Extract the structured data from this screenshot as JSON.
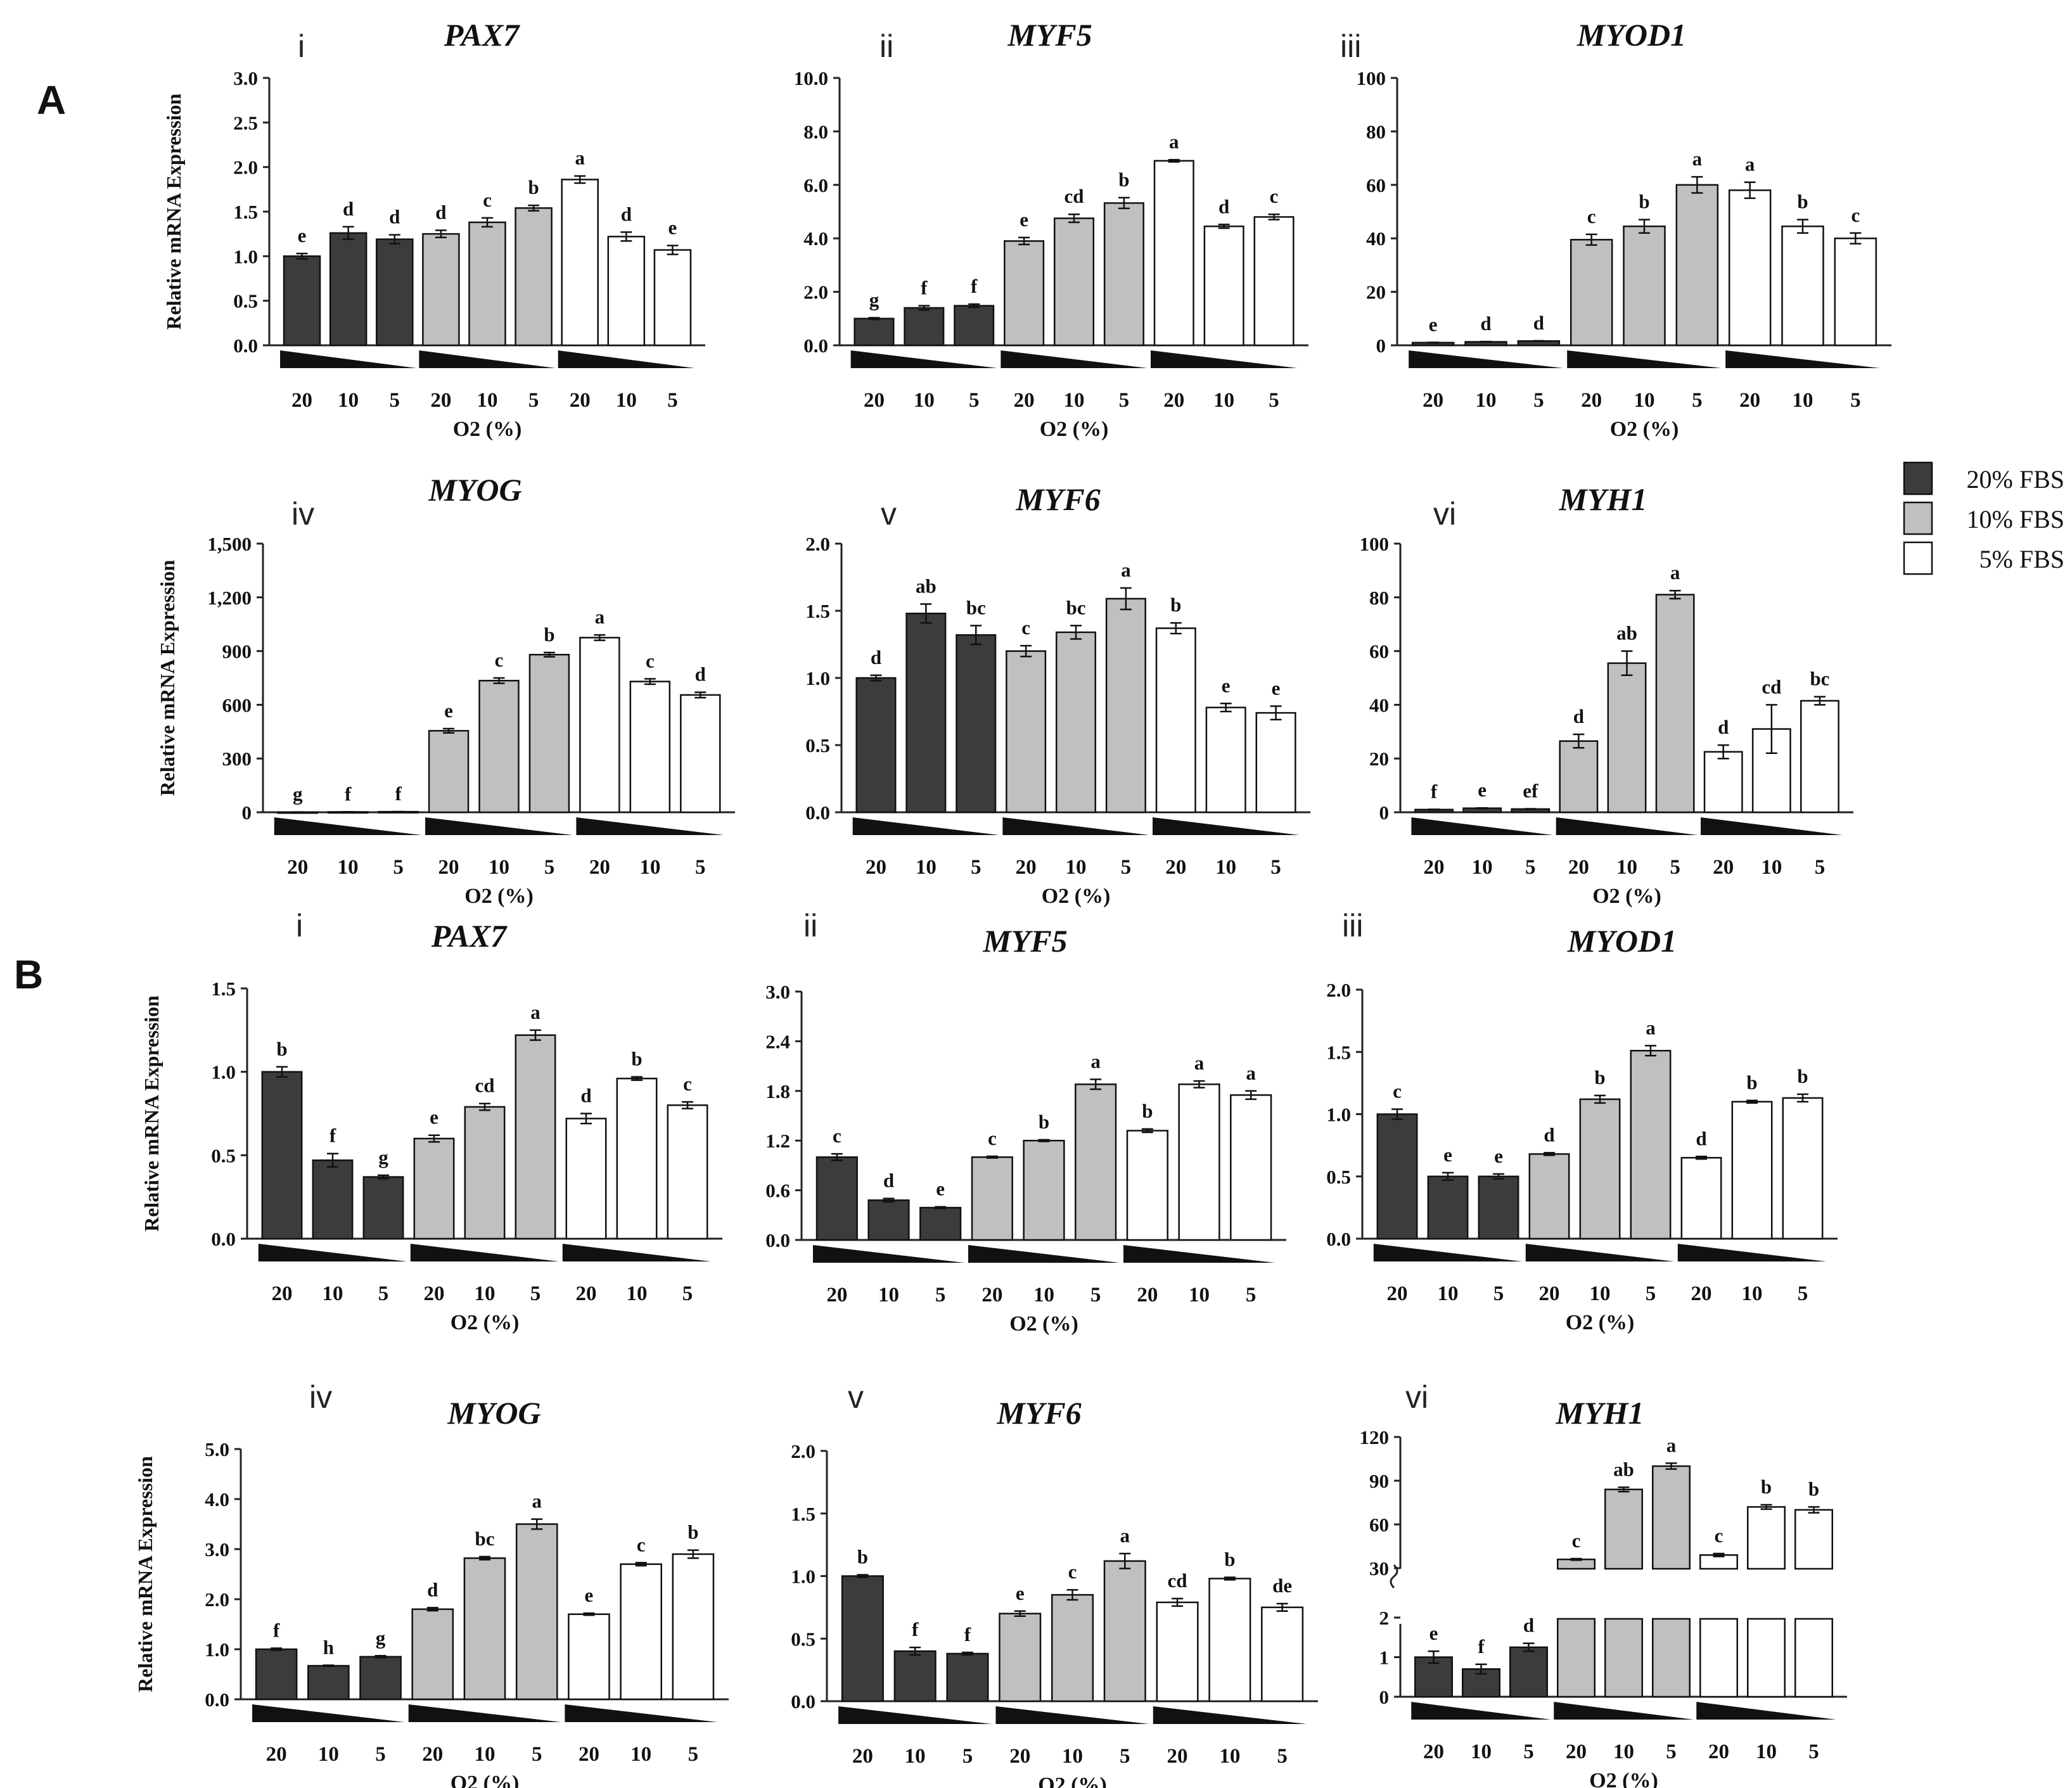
{
  "figure": {
    "legend": [
      {
        "label": "20% FBS",
        "color": "#3c3c3c"
      },
      {
        "label": "10% FBS",
        "color": "#c0c0c0"
      },
      {
        "label": "5% FBS",
        "color": "#ffffff"
      }
    ],
    "colors": {
      "fbs20": "#3c3c3c",
      "fbs10": "#c0c0c0",
      "fbs5": "#ffffff",
      "axis": "#222222"
    }
  },
  "chart_data": [
    {
      "panel": "A",
      "roman": "i",
      "type": "bar",
      "title": "PAX7",
      "ylabel": "Relative mRNA Expression",
      "xlabel": "O2 (%)",
      "categories": [
        "20",
        "10",
        "5",
        "20",
        "10",
        "5",
        "20",
        "10",
        "5"
      ],
      "groups": [
        "20% FBS",
        "20% FBS",
        "20% FBS",
        "10% FBS",
        "10% FBS",
        "10% FBS",
        "5% FBS",
        "5% FBS",
        "5% FBS"
      ],
      "values": [
        1.0,
        1.26,
        1.19,
        1.25,
        1.38,
        1.54,
        1.86,
        1.22,
        1.07
      ],
      "errors": [
        0.03,
        0.07,
        0.05,
        0.04,
        0.05,
        0.03,
        0.04,
        0.05,
        0.05
      ],
      "sig": [
        "e",
        "d",
        "d",
        "d",
        "c",
        "b",
        "a",
        "d",
        "e"
      ],
      "ylim": [
        0,
        3.0
      ],
      "yticks": [
        "0.0",
        "0.5",
        "1.0",
        "1.5",
        "2.0",
        "2.5",
        "3.0"
      ]
    },
    {
      "panel": "A",
      "roman": "ii",
      "type": "bar",
      "title": "MYF5",
      "ylabel": "",
      "xlabel": "O2 (%)",
      "categories": [
        "20",
        "10",
        "5",
        "20",
        "10",
        "5",
        "20",
        "10",
        "5"
      ],
      "groups": [
        "20% FBS",
        "20% FBS",
        "20% FBS",
        "10% FBS",
        "10% FBS",
        "10% FBS",
        "5% FBS",
        "5% FBS",
        "5% FBS"
      ],
      "values": [
        1.0,
        1.4,
        1.48,
        3.9,
        4.75,
        5.32,
        6.9,
        4.45,
        4.8
      ],
      "errors": [
        0.03,
        0.08,
        0.06,
        0.13,
        0.15,
        0.2,
        0.04,
        0.07,
        0.1
      ],
      "sig": [
        "g",
        "f",
        "f",
        "e",
        "cd",
        "b",
        "a",
        "d",
        "c"
      ],
      "ylim": [
        0,
        10.0
      ],
      "yticks": [
        "0.0",
        "2.0",
        "4.0",
        "6.0",
        "8.0",
        "10.0"
      ]
    },
    {
      "panel": "A",
      "roman": "iii",
      "type": "bar",
      "title": "MYOD1",
      "ylabel": "",
      "xlabel": "O2 (%)",
      "categories": [
        "20",
        "10",
        "5",
        "20",
        "10",
        "5",
        "20",
        "10",
        "5"
      ],
      "groups": [
        "20% FBS",
        "20% FBS",
        "20% FBS",
        "10% FBS",
        "10% FBS",
        "10% FBS",
        "5% FBS",
        "5% FBS",
        "5% FBS"
      ],
      "values": [
        1.0,
        1.3,
        1.6,
        39.5,
        44.5,
        60.0,
        58.0,
        44.5,
        40.0
      ],
      "errors": [
        0.1,
        0.1,
        0.1,
        2.0,
        2.5,
        3.0,
        3.0,
        2.5,
        2.0
      ],
      "sig": [
        "e",
        "d",
        "d",
        "c",
        "b",
        "a",
        "a",
        "b",
        "c"
      ],
      "ylim": [
        0,
        100
      ],
      "yticks": [
        "0",
        "20",
        "40",
        "60",
        "80",
        "100"
      ]
    },
    {
      "panel": "A",
      "roman": "iv",
      "type": "bar",
      "title": "MYOG",
      "ylabel": "Relative mRNA Expression",
      "xlabel": "O2 (%)",
      "categories": [
        "20",
        "10",
        "5",
        "20",
        "10",
        "5",
        "20",
        "10",
        "5"
      ],
      "groups": [
        "20% FBS",
        "20% FBS",
        "20% FBS",
        "10% FBS",
        "10% FBS",
        "10% FBS",
        "5% FBS",
        "5% FBS",
        "5% FBS"
      ],
      "values": [
        1,
        2,
        3,
        455,
        735,
        880,
        975,
        730,
        655
      ],
      "errors": [
        0.5,
        0.5,
        0.5,
        12,
        15,
        12,
        15,
        15,
        15
      ],
      "sig": [
        "g",
        "f",
        "f",
        "e",
        "c",
        "b",
        "a",
        "c",
        "d"
      ],
      "ylim": [
        0,
        1500
      ],
      "yticks": [
        "0",
        "300",
        "600",
        "900",
        "1,200",
        "1,500"
      ]
    },
    {
      "panel": "A",
      "roman": "v",
      "type": "bar",
      "title": "MYF6",
      "ylabel": "",
      "xlabel": "O2 (%)",
      "categories": [
        "20",
        "10",
        "5",
        "20",
        "10",
        "5",
        "20",
        "10",
        "5"
      ],
      "groups": [
        "20% FBS",
        "20% FBS",
        "20% FBS",
        "10% FBS",
        "10% FBS",
        "10% FBS",
        "5% FBS",
        "5% FBS",
        "5% FBS"
      ],
      "values": [
        1.0,
        1.48,
        1.32,
        1.2,
        1.34,
        1.59,
        1.37,
        0.78,
        0.74
      ],
      "errors": [
        0.02,
        0.07,
        0.07,
        0.04,
        0.05,
        0.08,
        0.04,
        0.03,
        0.05
      ],
      "sig": [
        "d",
        "ab",
        "bc",
        "c",
        "bc",
        "a",
        "b",
        "e",
        "e"
      ],
      "ylim": [
        0,
        2.0
      ],
      "yticks": [
        "0.0",
        "0.5",
        "1.0",
        "1.5",
        "2.0"
      ]
    },
    {
      "panel": "A",
      "roman": "vi",
      "type": "bar",
      "title": "MYH1",
      "ylabel": "",
      "xlabel": "O2 (%)",
      "categories": [
        "20",
        "10",
        "5",
        "20",
        "10",
        "5",
        "20",
        "10",
        "5"
      ],
      "groups": [
        "20% FBS",
        "20% FBS",
        "20% FBS",
        "10% FBS",
        "10% FBS",
        "10% FBS",
        "5% FBS",
        "5% FBS",
        "5% FBS"
      ],
      "values": [
        1.0,
        1.5,
        1.2,
        26.5,
        55.5,
        81.0,
        22.5,
        31.0,
        41.5
      ],
      "errors": [
        0.1,
        0.1,
        0.1,
        2.5,
        4.5,
        1.5,
        2.5,
        9.0,
        1.5
      ],
      "sig": [
        "f",
        "e",
        "ef",
        "d",
        "ab",
        "a",
        "d",
        "cd",
        "bc"
      ],
      "ylim": [
        0,
        100
      ],
      "yticks": [
        "0",
        "20",
        "40",
        "60",
        "80",
        "100"
      ]
    },
    {
      "panel": "B",
      "roman": "i",
      "type": "bar",
      "title": "PAX7",
      "ylabel": "Relative mRNA Expression",
      "xlabel": "O2 (%)",
      "categories": [
        "20",
        "10",
        "5",
        "20",
        "10",
        "5",
        "20",
        "10",
        "5"
      ],
      "groups": [
        "20% FBS",
        "20% FBS",
        "20% FBS",
        "10% FBS",
        "10% FBS",
        "10% FBS",
        "5% FBS",
        "5% FBS",
        "5% FBS"
      ],
      "values": [
        1.0,
        0.47,
        0.37,
        0.6,
        0.79,
        1.22,
        0.72,
        0.96,
        0.8
      ],
      "errors": [
        0.03,
        0.04,
        0.01,
        0.02,
        0.02,
        0.03,
        0.03,
        0.01,
        0.02
      ],
      "sig": [
        "b",
        "f",
        "g",
        "e",
        "cd",
        "a",
        "d",
        "b",
        "c"
      ],
      "ylim": [
        0,
        1.5
      ],
      "yticks": [
        "0.0",
        "0.5",
        "1.0",
        "1.5"
      ]
    },
    {
      "panel": "B",
      "roman": "ii",
      "type": "bar",
      "title": "MYF5",
      "ylabel": "",
      "xlabel": "O2 (%)",
      "categories": [
        "20",
        "10",
        "5",
        "20",
        "10",
        "5",
        "20",
        "10",
        "5"
      ],
      "groups": [
        "20% FBS",
        "20% FBS",
        "20% FBS",
        "10% FBS",
        "10% FBS",
        "10% FBS",
        "5% FBS",
        "5% FBS",
        "5% FBS"
      ],
      "values": [
        1.0,
        0.48,
        0.39,
        1.0,
        1.2,
        1.88,
        1.32,
        1.88,
        1.75
      ],
      "errors": [
        0.04,
        0.02,
        0.01,
        0.01,
        0.01,
        0.06,
        0.02,
        0.04,
        0.05
      ],
      "sig": [
        "c",
        "d",
        "e",
        "c",
        "b",
        "a",
        "b",
        "a",
        "a"
      ],
      "ylim": [
        0,
        3.0
      ],
      "yticks": [
        "0.0",
        "0.6",
        "1.2",
        "1.8",
        "2.4",
        "3.0"
      ]
    },
    {
      "panel": "B",
      "roman": "iii",
      "type": "bar",
      "title": "MYOD1",
      "ylabel": "",
      "xlabel": "O2 (%)",
      "categories": [
        "20",
        "10",
        "5",
        "20",
        "10",
        "5",
        "20",
        "10",
        "5"
      ],
      "groups": [
        "20% FBS",
        "20% FBS",
        "20% FBS",
        "10% FBS",
        "10% FBS",
        "10% FBS",
        "5% FBS",
        "5% FBS",
        "5% FBS"
      ],
      "values": [
        1.0,
        0.5,
        0.5,
        0.68,
        1.12,
        1.51,
        0.65,
        1.1,
        1.13
      ],
      "errors": [
        0.04,
        0.03,
        0.02,
        0.01,
        0.03,
        0.04,
        0.01,
        0.01,
        0.03
      ],
      "sig": [
        "c",
        "e",
        "e",
        "d",
        "b",
        "a",
        "d",
        "b",
        "b"
      ],
      "ylim": [
        0,
        2.0
      ],
      "yticks": [
        "0.0",
        "0.5",
        "1.0",
        "1.5",
        "2.0"
      ]
    },
    {
      "panel": "B",
      "roman": "iv",
      "type": "bar",
      "title": "MYOG",
      "ylabel": "Relative mRNA Expression",
      "xlabel": "O2 (%)",
      "categories": [
        "20",
        "10",
        "5",
        "20",
        "10",
        "5",
        "20",
        "10",
        "5"
      ],
      "groups": [
        "20% FBS",
        "20% FBS",
        "20% FBS",
        "10% FBS",
        "10% FBS",
        "10% FBS",
        "5% FBS",
        "5% FBS",
        "5% FBS"
      ],
      "values": [
        1.0,
        0.67,
        0.85,
        1.8,
        2.82,
        3.5,
        1.7,
        2.7,
        2.9
      ],
      "errors": [
        0.02,
        0.01,
        0.02,
        0.03,
        0.03,
        0.1,
        0.02,
        0.03,
        0.08
      ],
      "sig": [
        "f",
        "h",
        "g",
        "d",
        "bc",
        "a",
        "e",
        "c",
        "b"
      ],
      "ylim": [
        0,
        5.0
      ],
      "yticks": [
        "0.0",
        "1.0",
        "2.0",
        "3.0",
        "4.0",
        "5.0"
      ]
    },
    {
      "panel": "B",
      "roman": "v",
      "type": "bar",
      "title": "MYF6",
      "ylabel": "",
      "xlabel": "O2 (%)",
      "categories": [
        "20",
        "10",
        "5",
        "20",
        "10",
        "5",
        "20",
        "10",
        "5"
      ],
      "groups": [
        "20% FBS",
        "20% FBS",
        "20% FBS",
        "10% FBS",
        "10% FBS",
        "10% FBS",
        "5% FBS",
        "5% FBS",
        "5% FBS"
      ],
      "values": [
        1.0,
        0.4,
        0.38,
        0.7,
        0.85,
        1.12,
        0.79,
        0.98,
        0.75
      ],
      "errors": [
        0.01,
        0.03,
        0.01,
        0.02,
        0.04,
        0.06,
        0.03,
        0.01,
        0.03
      ],
      "sig": [
        "b",
        "f",
        "f",
        "e",
        "c",
        "a",
        "cd",
        "b",
        "de"
      ],
      "ylim": [
        0,
        2.0
      ],
      "yticks": [
        "0.0",
        "0.5",
        "1.0",
        "1.5",
        "2.0"
      ]
    },
    {
      "panel": "B",
      "roman": "vi",
      "type": "bar",
      "title": "MYH1",
      "ylabel": "",
      "xlabel": "O2 (%)",
      "broken_axis": true,
      "categories": [
        "20",
        "10",
        "5",
        "20",
        "10",
        "5",
        "20",
        "10",
        "5"
      ],
      "groups": [
        "20% FBS",
        "20% FBS",
        "20% FBS",
        "10% FBS",
        "10% FBS",
        "10% FBS",
        "5% FBS",
        "5% FBS",
        "5% FBS"
      ],
      "values": [
        1.0,
        0.7,
        1.25,
        36,
        84,
        100,
        39,
        72,
        70
      ],
      "errors": [
        0.15,
        0.12,
        0.1,
        0.5,
        1.5,
        2.0,
        1.0,
        1.5,
        2.0
      ],
      "sig": [
        "e",
        "f",
        "d",
        "c",
        "ab",
        "a",
        "c",
        "b",
        "b"
      ],
      "ylim": [
        0,
        120
      ],
      "yticks": [
        "0",
        "1",
        "2",
        "30",
        "60",
        "90",
        "120"
      ]
    }
  ]
}
